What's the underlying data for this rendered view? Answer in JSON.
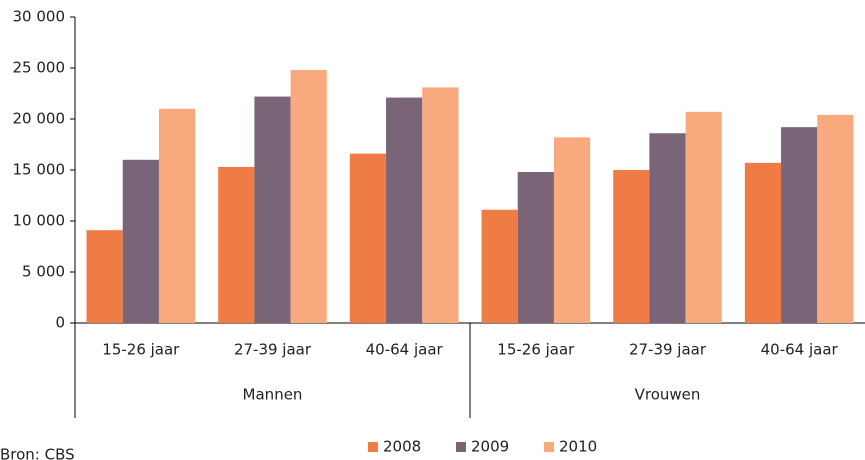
{
  "chart_data": {
    "type": "bar",
    "categories": [
      "15-26 jaar",
      "27-39 jaar",
      "40-64 jaar",
      "15-26 jaar",
      "27-39 jaar",
      "40-64 jaar"
    ],
    "groups": [
      "Mannen",
      "Vrouwen"
    ],
    "series": [
      {
        "name": "2008",
        "color": "#f07c45",
        "values": [
          9100,
          15300,
          16600,
          11100,
          15000,
          15700
        ]
      },
      {
        "name": "2009",
        "color": "#7a6478",
        "values": [
          16000,
          22200,
          22100,
          14800,
          18600,
          19200
        ]
      },
      {
        "name": "2010",
        "color": "#f8aa7e",
        "values": [
          21000,
          24800,
          23100,
          18200,
          20700,
          20400
        ]
      }
    ],
    "ylim": [
      0,
      30000
    ],
    "yticks": [
      0,
      {
        "value": 5000,
        "label": "5 000"
      },
      {
        "value": 10000,
        "label": "10 000"
      },
      {
        "value": 15000,
        "label": "15 000"
      },
      {
        "value": 20000,
        "label": "20 000"
      },
      {
        "value": 25000,
        "label": "25 000"
      },
      {
        "value": 30000,
        "label": "30 000"
      }
    ],
    "legend": "bottom",
    "source": "Bron: CBS"
  }
}
